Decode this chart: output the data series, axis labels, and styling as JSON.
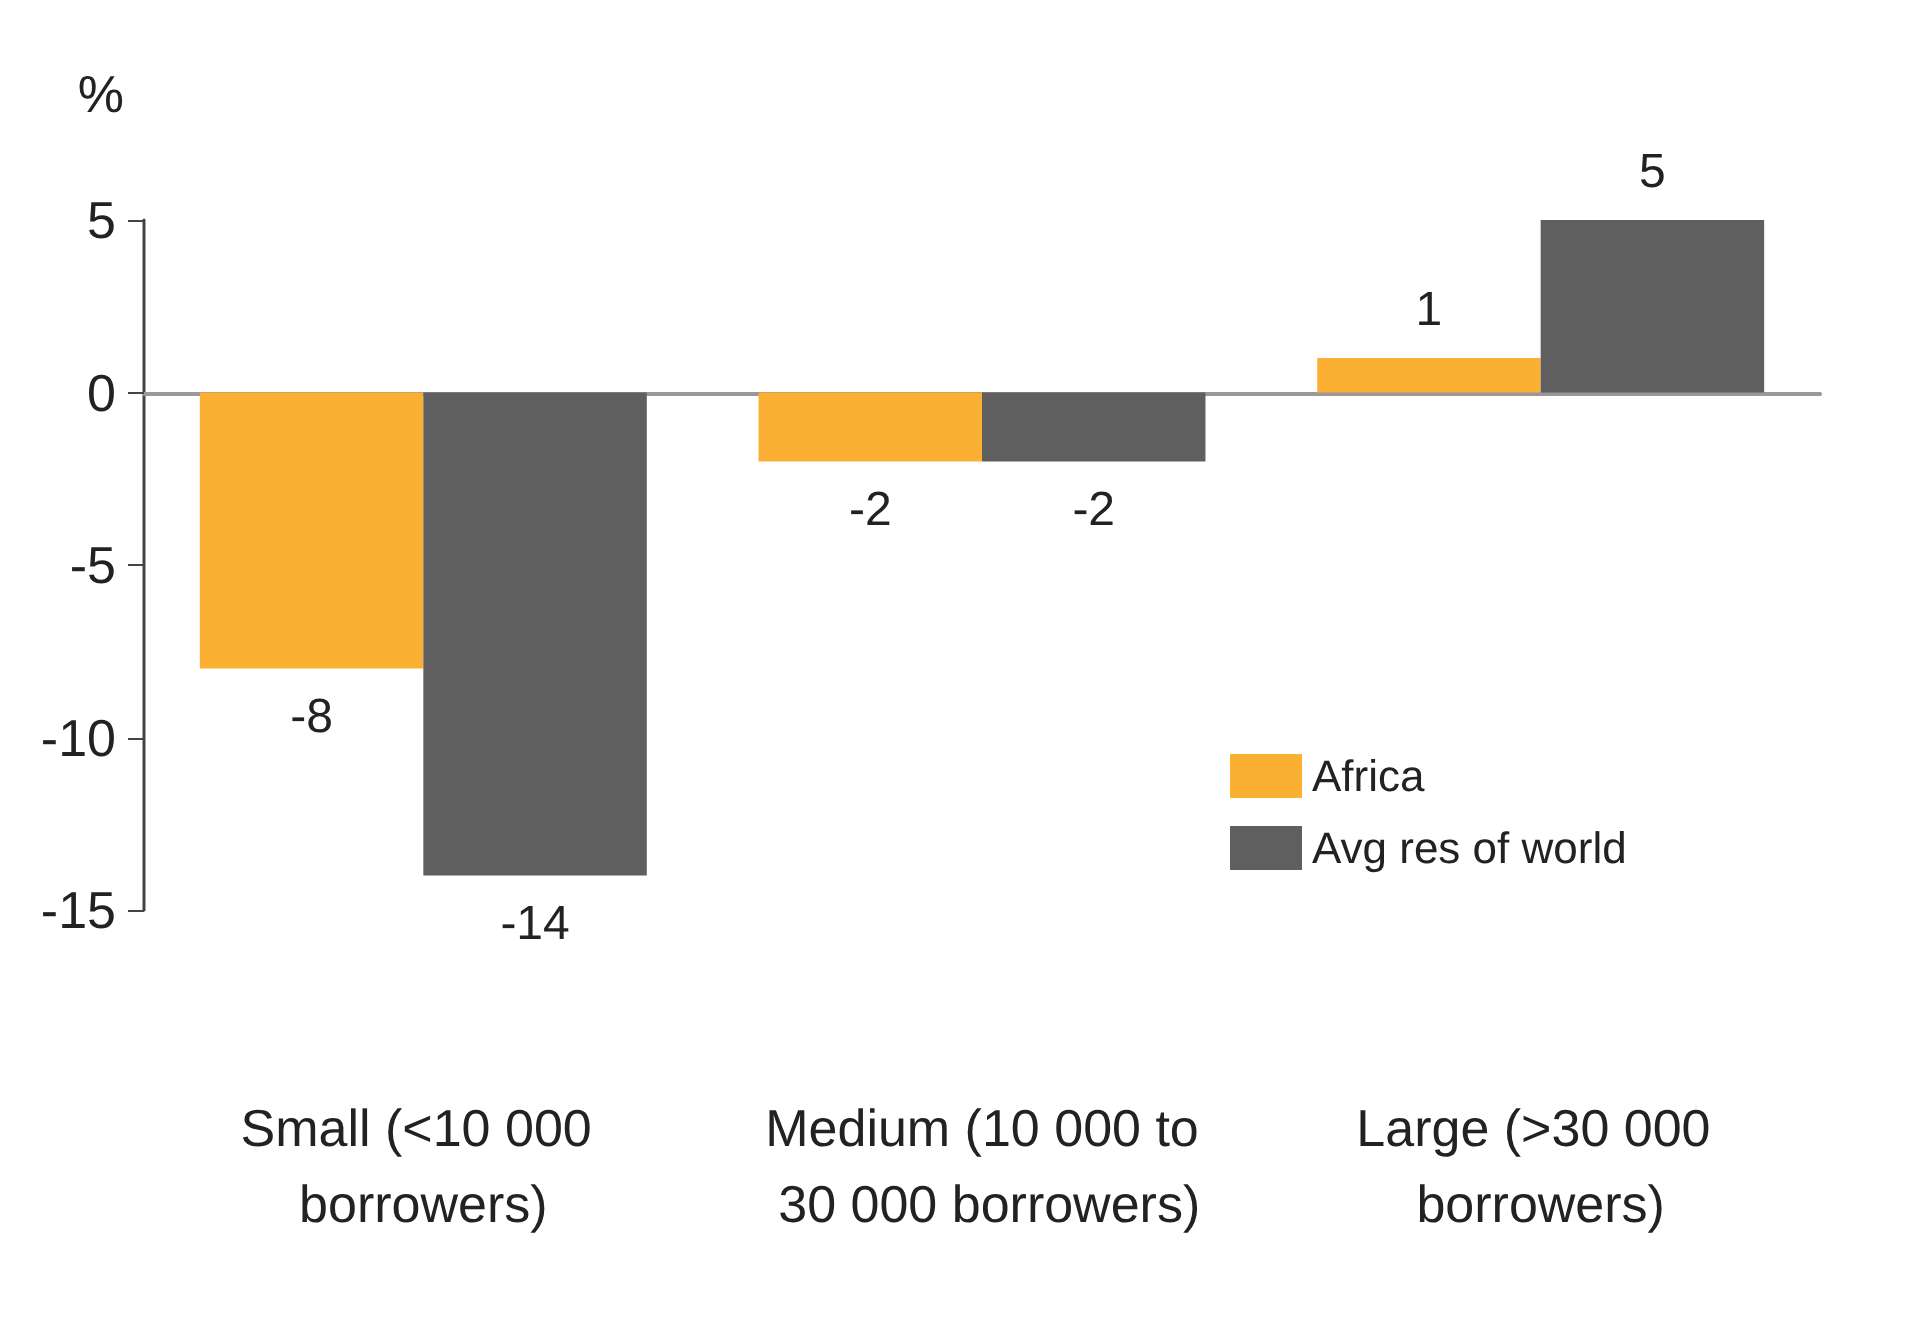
{
  "chart_data": {
    "type": "bar",
    "ylabel": "%",
    "categories": [
      "Small (<10 000 borrowers)",
      "Medium (10 000 to 30 000 borrowers)",
      "Large (>30 000 borrowers)"
    ],
    "series": [
      {
        "name": "Africa",
        "color": "#fbb034",
        "values": [
          -8,
          -2,
          1
        ]
      },
      {
        "name": "Avg res of world",
        "color": "#5f5f5f",
        "values": [
          -14,
          -2,
          5
        ]
      }
    ],
    "ylim": [
      -15,
      5
    ],
    "yticks": [
      -15,
      -10,
      -5,
      0,
      5
    ],
    "legend": "right",
    "data_labels": true
  }
}
